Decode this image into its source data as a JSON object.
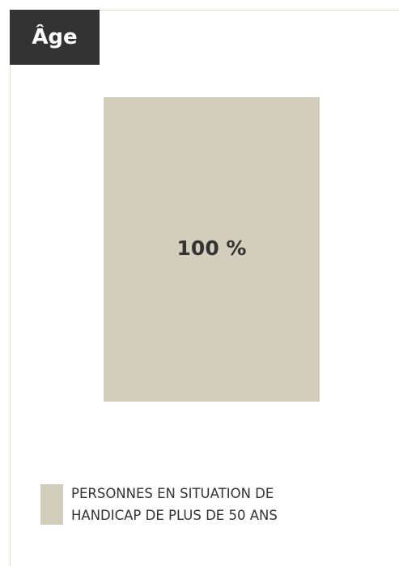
{
  "chart_data": {
    "type": "bar",
    "title": "Âge",
    "categories": [
      null
    ],
    "series": [
      {
        "name": "PERSONNES EN SITUATION DE HANDICAP DE PLUS DE 50 ANS",
        "color": "#d3cebb",
        "values": [
          100
        ],
        "value_labels": [
          "100 %"
        ]
      }
    ],
    "ylim": [
      0,
      100
    ]
  }
}
